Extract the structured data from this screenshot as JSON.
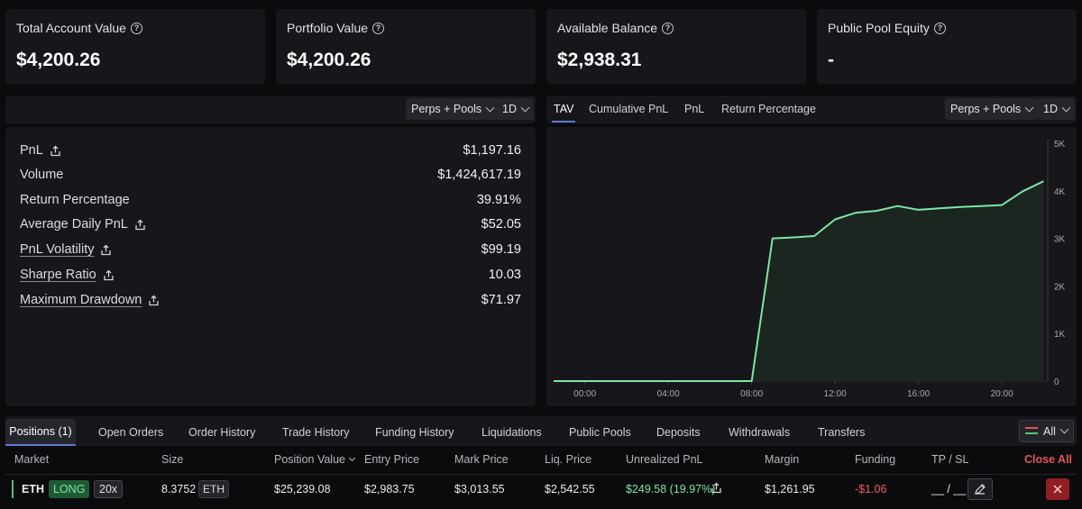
{
  "stats": [
    {
      "label": "Total Account Value",
      "value": "$4,200.26"
    },
    {
      "label": "Portfolio Value",
      "value": "$4,200.26"
    },
    {
      "label": "Available Balance",
      "value": "$2,938.31"
    },
    {
      "label": "Public Pool Equity",
      "value": "-"
    }
  ],
  "left_panel": {
    "filter": "Perps + Pools",
    "timeframe": "1D",
    "metrics": [
      {
        "label": "PnL",
        "value": "$1,197.16"
      },
      {
        "label": "Volume",
        "value": "$1,424,617.19"
      },
      {
        "label": "Return Percentage",
        "value": "39.91%"
      },
      {
        "label": "Average Daily PnL",
        "value": "$52.05"
      },
      {
        "label": "PnL Volatility",
        "value": "$99.19"
      },
      {
        "label": "Sharpe Ratio",
        "value": "10.03"
      },
      {
        "label": "Maximum Drawdown",
        "value": "$71.97"
      }
    ]
  },
  "chart_panel": {
    "tabs": [
      "TAV",
      "Cumulative PnL",
      "PnL",
      "Return Percentage"
    ],
    "active_tab": "TAV",
    "filter": "Perps + Pools",
    "timeframe": "1D"
  },
  "chart_data": {
    "type": "area",
    "title": "",
    "xlabel": "",
    "ylabel": "",
    "x_ticks": [
      "00:00",
      "04:00",
      "08:00",
      "12:00",
      "16:00",
      "20:00"
    ],
    "y_ticks": [
      "5K",
      "4K",
      "3K",
      "2K",
      "1K",
      "0"
    ],
    "ylim": [
      0,
      5000
    ],
    "xlim": [
      -1.5,
      22.2
    ],
    "accent": "#7ee6a2",
    "series": [
      {
        "x": [
          -1.5,
          8.0,
          9.0,
          10.0,
          11.0,
          12.0,
          13.0,
          14.0,
          15.0,
          16.0,
          17.0,
          18.0,
          19.0,
          20.0,
          21.0,
          22.0
        ],
        "values": [
          0,
          0,
          3000,
          3020,
          3050,
          3400,
          3540,
          3580,
          3680,
          3600,
          3630,
          3660,
          3680,
          3700,
          3990,
          4200
        ]
      }
    ]
  },
  "bottom_tabs": [
    "Positions (1)",
    "Open Orders",
    "Order History",
    "Trade History",
    "Funding History",
    "Liquidations",
    "Public Pools",
    "Deposits",
    "Withdrawals",
    "Transfers"
  ],
  "bottom_filter": "All",
  "positions": {
    "headers": {
      "market": "Market",
      "size": "Size",
      "position_value": "Position Value",
      "entry_price": "Entry Price",
      "mark_price": "Mark Price",
      "liq_price": "Liq. Price",
      "unrealized_pnl": "Unrealized PnL",
      "margin": "Margin",
      "funding": "Funding",
      "tp_sl": "TP / SL",
      "close_all": "Close All"
    },
    "rows": [
      {
        "market": "ETH",
        "side": "LONG",
        "leverage": "20x",
        "size": "8.3752",
        "size_unit": "ETH",
        "position_value": "$25,239.08",
        "entry_price": "$2,983.75",
        "mark_price": "$3,013.55",
        "liq_price": "$2,542.55",
        "unrealized_pnl": "$249.58 (19.97%)",
        "margin": "$1,261.95",
        "funding": "-$1.06",
        "tp_sl": "__ / __"
      }
    ]
  },
  "colors": {
    "positive": "#7ee6a2",
    "negative": "#f25c5c",
    "long_bg": "#1f5a35"
  }
}
